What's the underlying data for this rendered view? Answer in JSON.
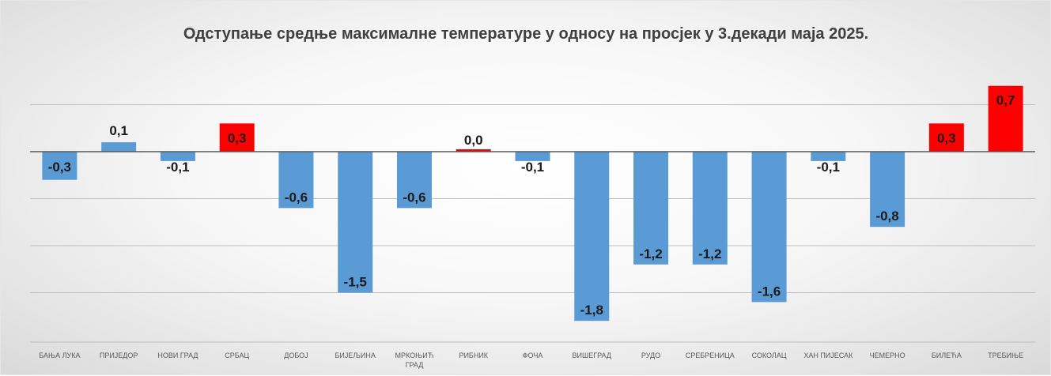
{
  "chart_data": {
    "type": "bar",
    "title": "Одступање средње максималне температуре у односу на просјек у 3.декади маја 2025.",
    "categories": [
      "БАЊА ЛУКА",
      "ПРИЈЕДОР",
      "НОВИ ГРАД",
      "СРБАЦ",
      "ДОБОЈ",
      "БИЈЕЉИНА",
      "МРКОЊИЋ ГРАД",
      "РИБНИК",
      "ФОЧА",
      "ВИШЕГРАД",
      "РУДО",
      "СРЕБРЕНИЦА",
      "СОКОЛАЦ",
      "ХАН ПИЈЕСАК",
      "ЧЕМЕРНО",
      "БИЛЕЋА",
      "ТРЕБИЊЕ"
    ],
    "values": [
      -0.3,
      0.1,
      -0.1,
      0.3,
      -0.6,
      -1.5,
      -0.6,
      0.0,
      -0.1,
      -1.8,
      -1.2,
      -1.2,
      -1.6,
      -0.1,
      -0.8,
      0.3,
      0.7
    ],
    "data_labels": [
      "-0,3",
      "0,1",
      "-0,1",
      "0,3",
      "-0,6",
      "-1,5",
      "-0,6",
      "0,0",
      "-0,1",
      "-1,8",
      "-1,2",
      "-1,2",
      "-1,6",
      "-0,1",
      "-0,8",
      "0,3",
      "0,7"
    ],
    "bar_colors": [
      "#5b9bd5",
      "#5b9bd5",
      "#5b9bd5",
      "#ff0000",
      "#5b9bd5",
      "#5b9bd5",
      "#5b9bd5",
      "#ff0000",
      "#5b9bd5",
      "#5b9bd5",
      "#5b9bd5",
      "#5b9bd5",
      "#5b9bd5",
      "#5b9bd5",
      "#5b9bd5",
      "#ff0000",
      "#ff0000"
    ],
    "xlabel": "",
    "ylabel": "",
    "ylim": [
      -2.0,
      0.9
    ],
    "grid": true,
    "legend": false,
    "colors": {
      "negative": "#5b9bd5",
      "positive_highlight": "#ff0000",
      "gridline": "#bfbfbf",
      "axis": "#595959"
    }
  }
}
